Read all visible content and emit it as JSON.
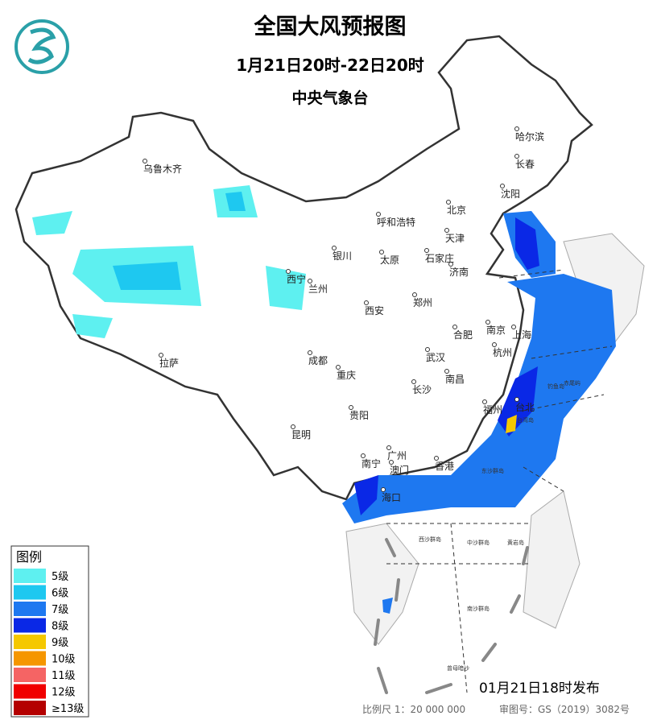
{
  "header": {
    "title": "全国大风预报图",
    "period": "1月21日20时-22日20时",
    "agency": "中央气象台"
  },
  "legend": {
    "title": "图例",
    "items": [
      {
        "label": "5级",
        "color": "#5ef0f0"
      },
      {
        "label": "6级",
        "color": "#1ec8f0"
      },
      {
        "label": "7级",
        "color": "#1e78f0"
      },
      {
        "label": "8级",
        "color": "#0a28e6"
      },
      {
        "label": "9级",
        "color": "#f5c800"
      },
      {
        "label": "10级",
        "color": "#f59600"
      },
      {
        "label": "11级",
        "color": "#f56464"
      },
      {
        "label": "12级",
        "color": "#f00000"
      },
      {
        "label": "≥13级",
        "color": "#b40000"
      }
    ]
  },
  "cities": [
    "乌鲁木齐",
    "哈尔滨",
    "长春",
    "沈阳",
    "北京",
    "天津",
    "呼和浩特",
    "石家庄",
    "太原",
    "济南",
    "银川",
    "西宁",
    "兰州",
    "郑州",
    "西安",
    "合肥",
    "南京",
    "上海",
    "杭州",
    "武汉",
    "成都",
    "重庆",
    "长沙",
    "南昌",
    "拉萨",
    "贵阳",
    "昆明",
    "福州",
    "台北",
    "南宁",
    "广州",
    "澳门",
    "香港",
    "海口"
  ],
  "islands": [
    "钓鱼岛",
    "赤尾屿",
    "台湾岛",
    "东沙群岛",
    "西沙群岛",
    "中沙群岛",
    "黄岩岛",
    "南沙群岛",
    "曾母暗沙"
  ],
  "footer": {
    "issued": "01月21日18时发布",
    "scale": "比例尺 1：20 000 000",
    "approval": "审图号：GS（2019）3082号"
  }
}
